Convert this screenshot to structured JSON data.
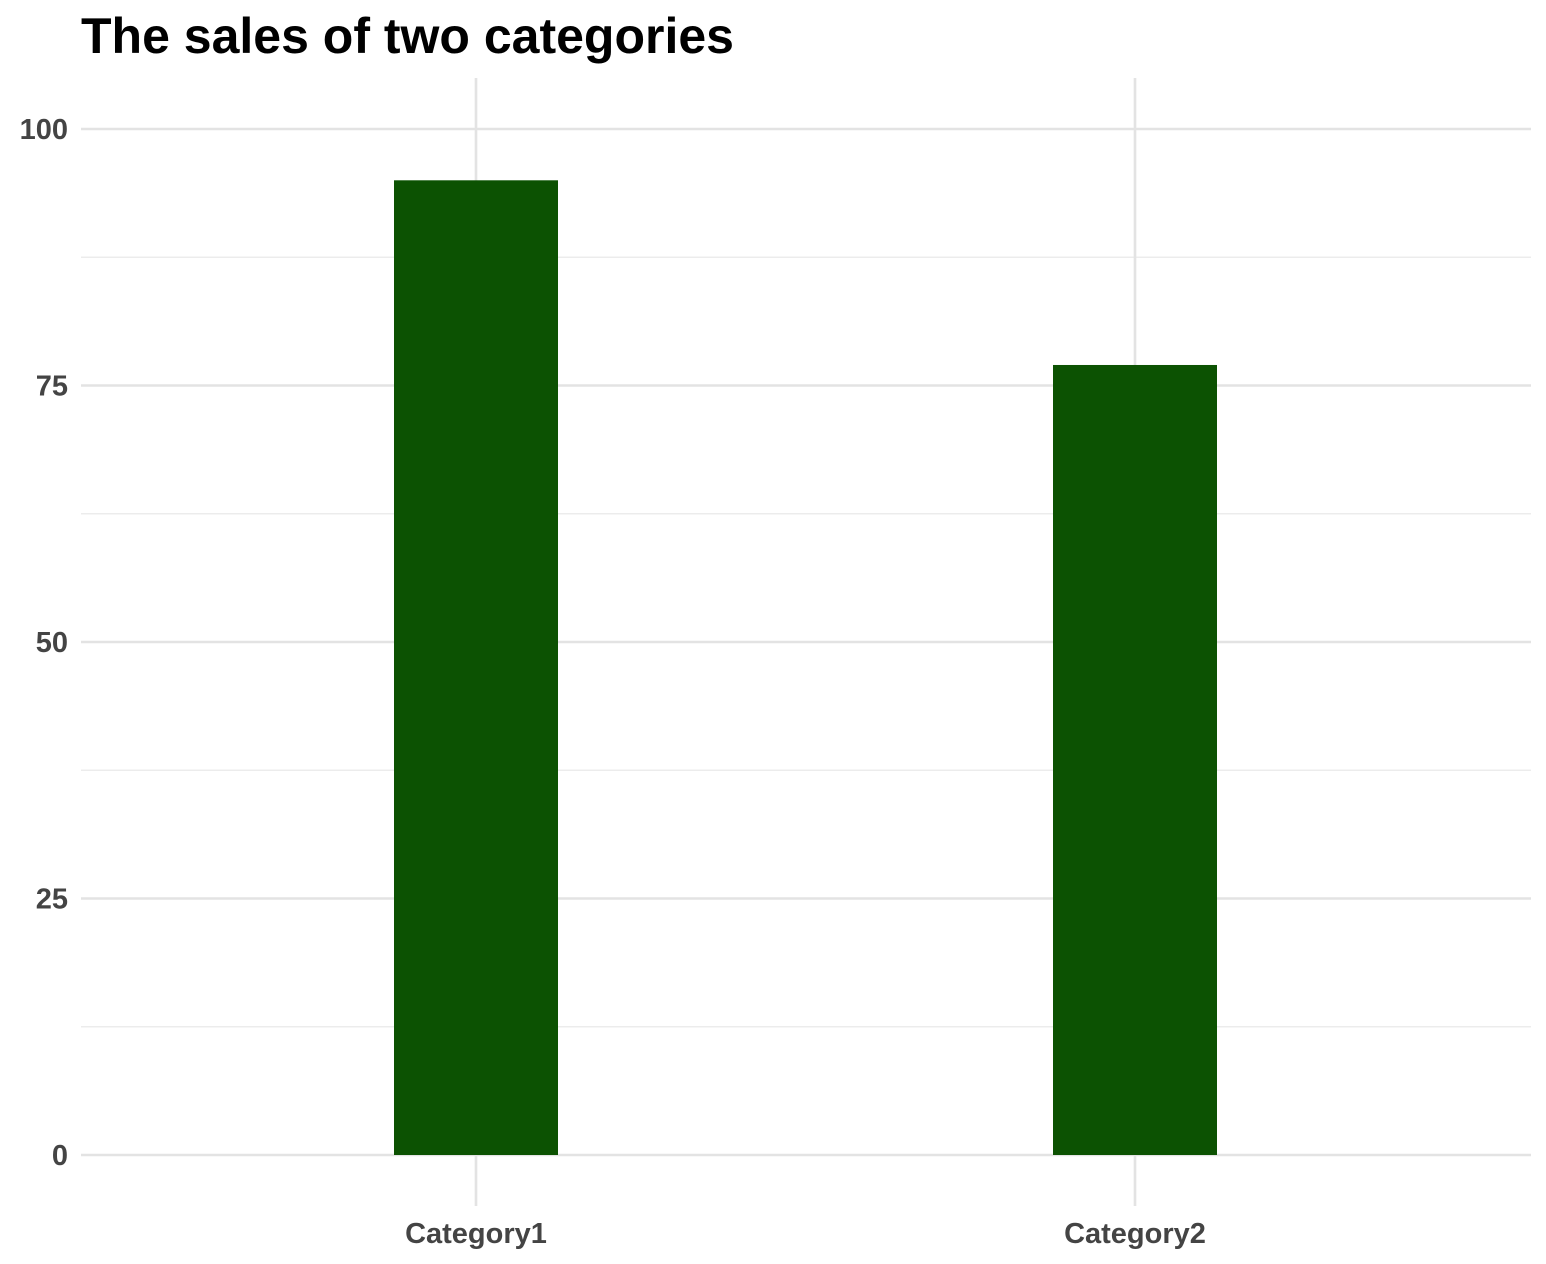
{
  "chart_data": {
    "type": "bar",
    "title": "The sales of two categories",
    "xlabel": "",
    "ylabel": "",
    "categories": [
      "Category1",
      "Category2"
    ],
    "values": [
      95,
      77
    ],
    "ylim": [
      0,
      105
    ],
    "y_ticks": [
      0,
      25,
      50,
      75,
      100
    ],
    "y_tick_labels": [
      "0",
      "25",
      "50",
      "75",
      "100"
    ],
    "grid": true,
    "legend": "none",
    "colors": {
      "bar": "#0c5202",
      "grid": "#e3e3e3",
      "tick_text": "#444444",
      "title_text": "#000000",
      "background": "#ffffff"
    }
  }
}
